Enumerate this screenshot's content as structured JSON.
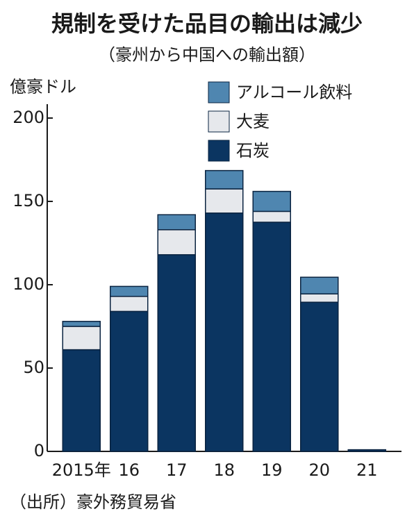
{
  "chart_data": {
    "type": "stacked-bar",
    "title": "規制を受けた品目の輸出は減少",
    "subtitle": "（豪州から中国への輸出額）",
    "y_label": "億豪ドル",
    "source": "（出所）豪外務貿易省",
    "categories": [
      "2015年",
      "16",
      "17",
      "18",
      "19",
      "20",
      "21"
    ],
    "series": [
      {
        "name": "石炭",
        "color": "#0b3561",
        "values": [
          61,
          84,
          118,
          143,
          137.5,
          89.5,
          1
        ]
      },
      {
        "name": "大麦",
        "color": "#e6e8ec",
        "values": [
          14,
          9,
          15,
          14.5,
          6.5,
          5,
          0
        ]
      },
      {
        "name": "アルコール飲料",
        "color": "#4f86b0",
        "values": [
          3,
          6,
          9,
          11,
          12,
          10,
          0
        ]
      }
    ],
    "ylim": [
      0,
      200
    ],
    "yticks": [
      0,
      50,
      100,
      150,
      200
    ],
    "grid": false
  }
}
